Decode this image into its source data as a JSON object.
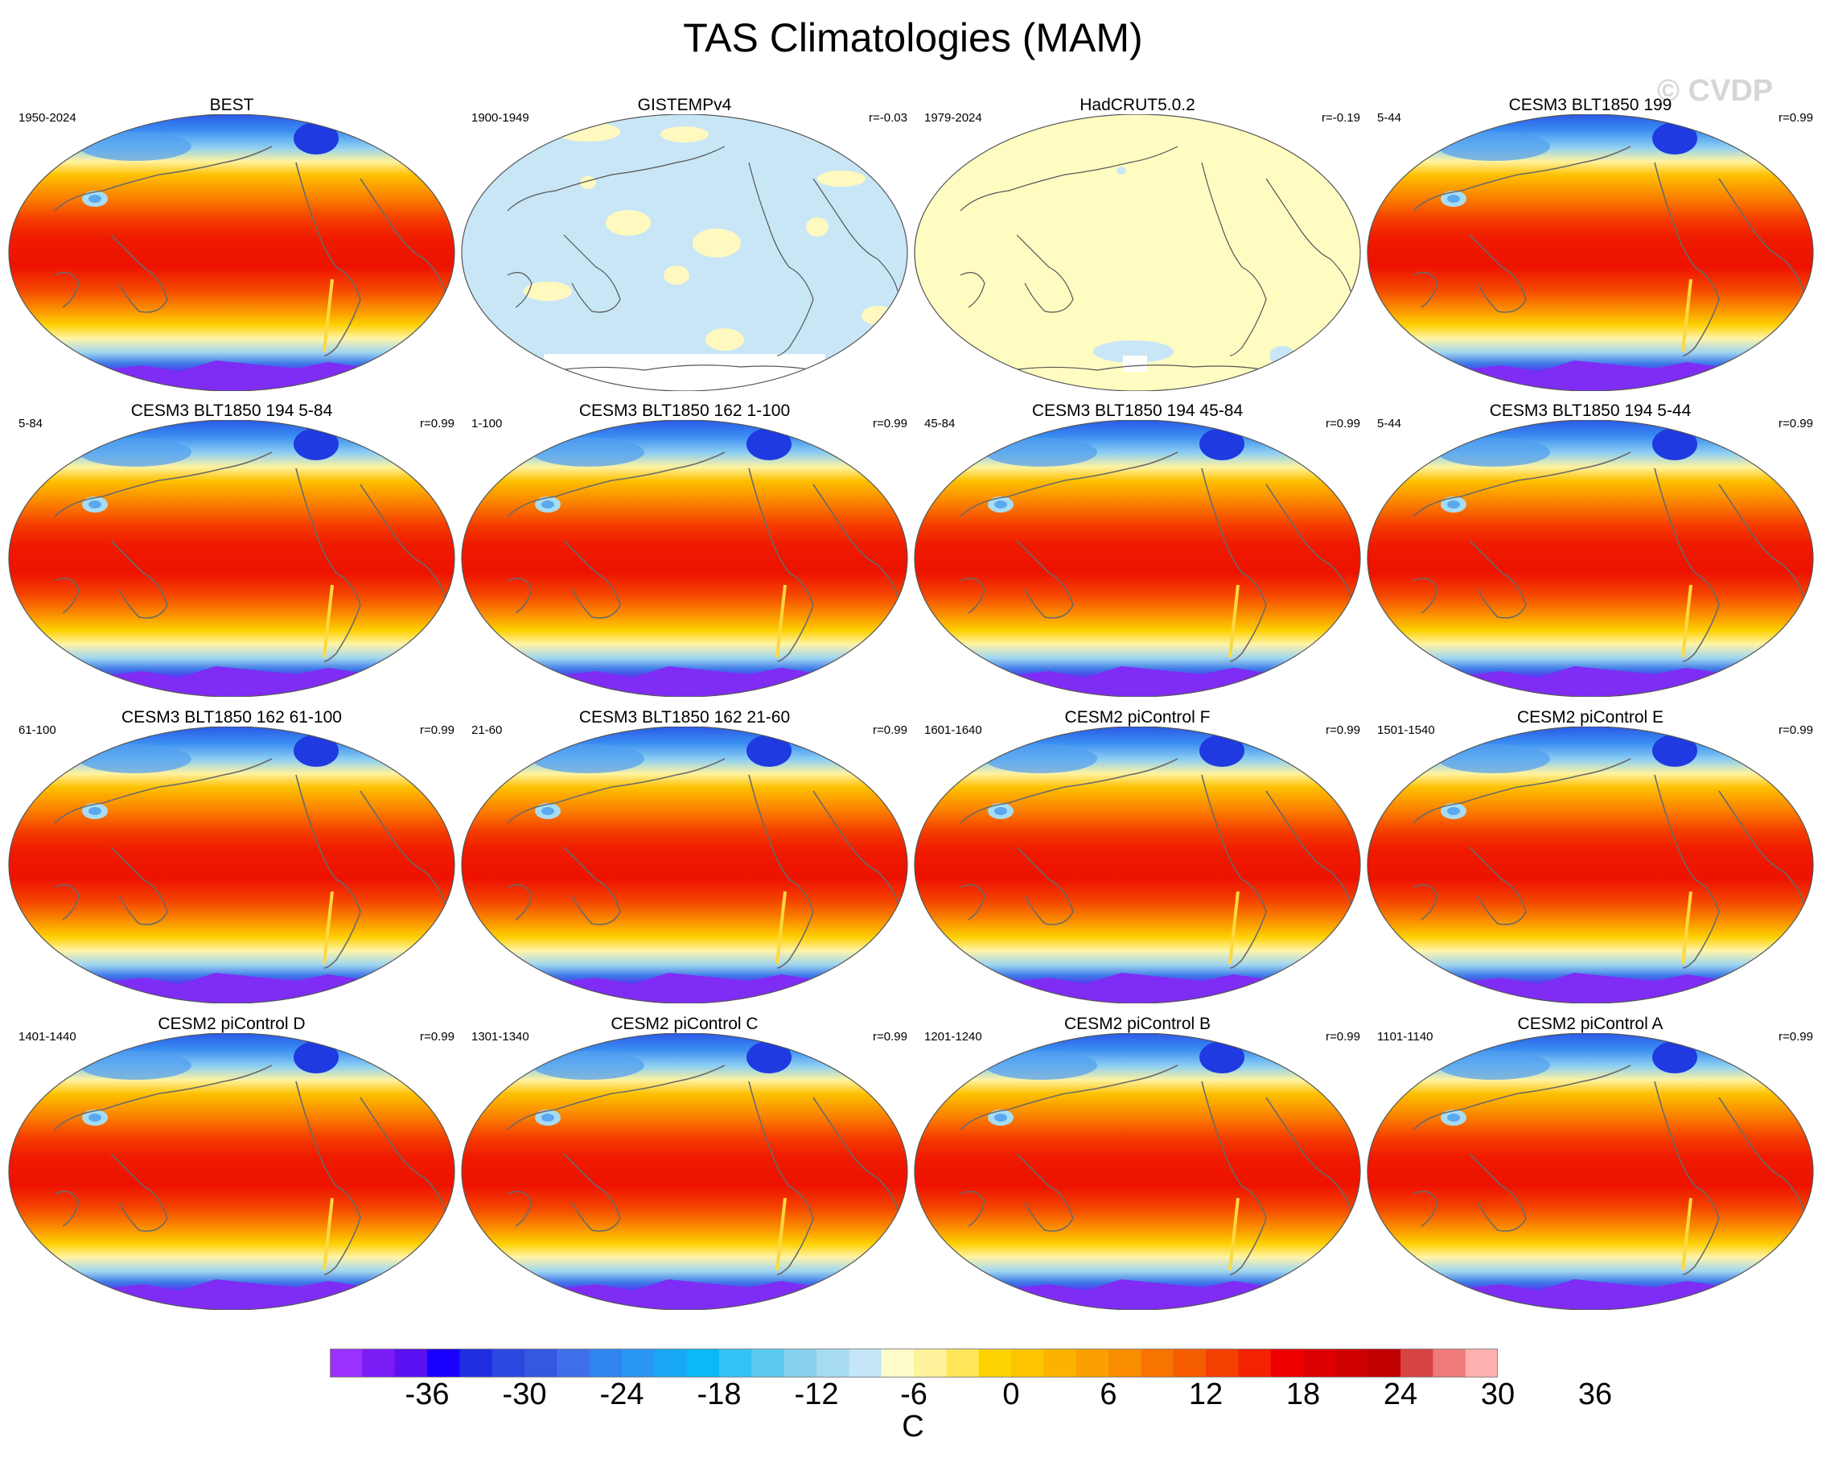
{
  "title": "TAS Climatologies (MAM)",
  "watermark": "© CVDP",
  "panels": [
    {
      "title": "BEST",
      "period": "1950-2024",
      "r": "",
      "style": "model"
    },
    {
      "title": "GISTEMPv4",
      "period": "1900-1949",
      "r": "r=-0.03",
      "style": "gistemp"
    },
    {
      "title": "HadCRUT5.0.2",
      "period": "1979-2024",
      "r": "r=-0.19",
      "style": "hadcrut"
    },
    {
      "title": "CESM3 BLT1850 199",
      "period": "5-44",
      "r": "r=0.99",
      "style": "model"
    },
    {
      "title": "CESM3 BLT1850 194 5-84",
      "period": "5-84",
      "r": "r=0.99",
      "style": "model"
    },
    {
      "title": "CESM3 BLT1850 162 1-100",
      "period": "1-100",
      "r": "r=0.99",
      "style": "model"
    },
    {
      "title": "CESM3 BLT1850 194 45-84",
      "period": "45-84",
      "r": "r=0.99",
      "style": "model"
    },
    {
      "title": "CESM3 BLT1850 194 5-44",
      "period": "5-44",
      "r": "r=0.99",
      "style": "model"
    },
    {
      "title": "CESM3 BLT1850 162 61-100",
      "period": "61-100",
      "r": "r=0.99",
      "style": "model"
    },
    {
      "title": "CESM3 BLT1850 162 21-60",
      "period": "21-60",
      "r": "r=0.99",
      "style": "model"
    },
    {
      "title": "CESM2 piControl F",
      "period": "1601-1640",
      "r": "r=0.99",
      "style": "model"
    },
    {
      "title": "CESM2 piControl E",
      "period": "1501-1540",
      "r": "r=0.99",
      "style": "model"
    },
    {
      "title": "CESM2 piControl D",
      "period": "1401-1440",
      "r": "r=0.99",
      "style": "model"
    },
    {
      "title": "CESM2 piControl C",
      "period": "1301-1340",
      "r": "r=0.99",
      "style": "model"
    },
    {
      "title": "CESM2 piControl B",
      "period": "1201-1240",
      "r": "r=0.99",
      "style": "model"
    },
    {
      "title": "CESM2 piControl A",
      "period": "1101-1140",
      "r": "r=0.99",
      "style": "model"
    }
  ],
  "colorbar": {
    "units": "C",
    "tick_labels": [
      "-36",
      "-30",
      "-24",
      "-18",
      "-12",
      "-6",
      "0",
      "6",
      "12",
      "18",
      "24",
      "30",
      "36"
    ],
    "colors": [
      "#9b30ff",
      "#7a1cf5",
      "#5a10f0",
      "#1a00ff",
      "#1f2fdf",
      "#2b48e0",
      "#3558e0",
      "#3e6fe8",
      "#2f84f0",
      "#2a96f4",
      "#1aa8f6",
      "#0bb8f8",
      "#33c2f5",
      "#5ccaf0",
      "#86d0ee",
      "#a6dbf2",
      "#c4e6f6",
      "#fffccb",
      "#fff49b",
      "#ffe659",
      "#fed400",
      "#fdc500",
      "#fcb300",
      "#fba000",
      "#fa8c00",
      "#f87400",
      "#f55c00",
      "#f34000",
      "#f32200",
      "#ef0000",
      "#de0000",
      "#cf0000",
      "#c10000",
      "#d84444",
      "#ef7a7a",
      "#ffb0b0"
    ]
  }
}
